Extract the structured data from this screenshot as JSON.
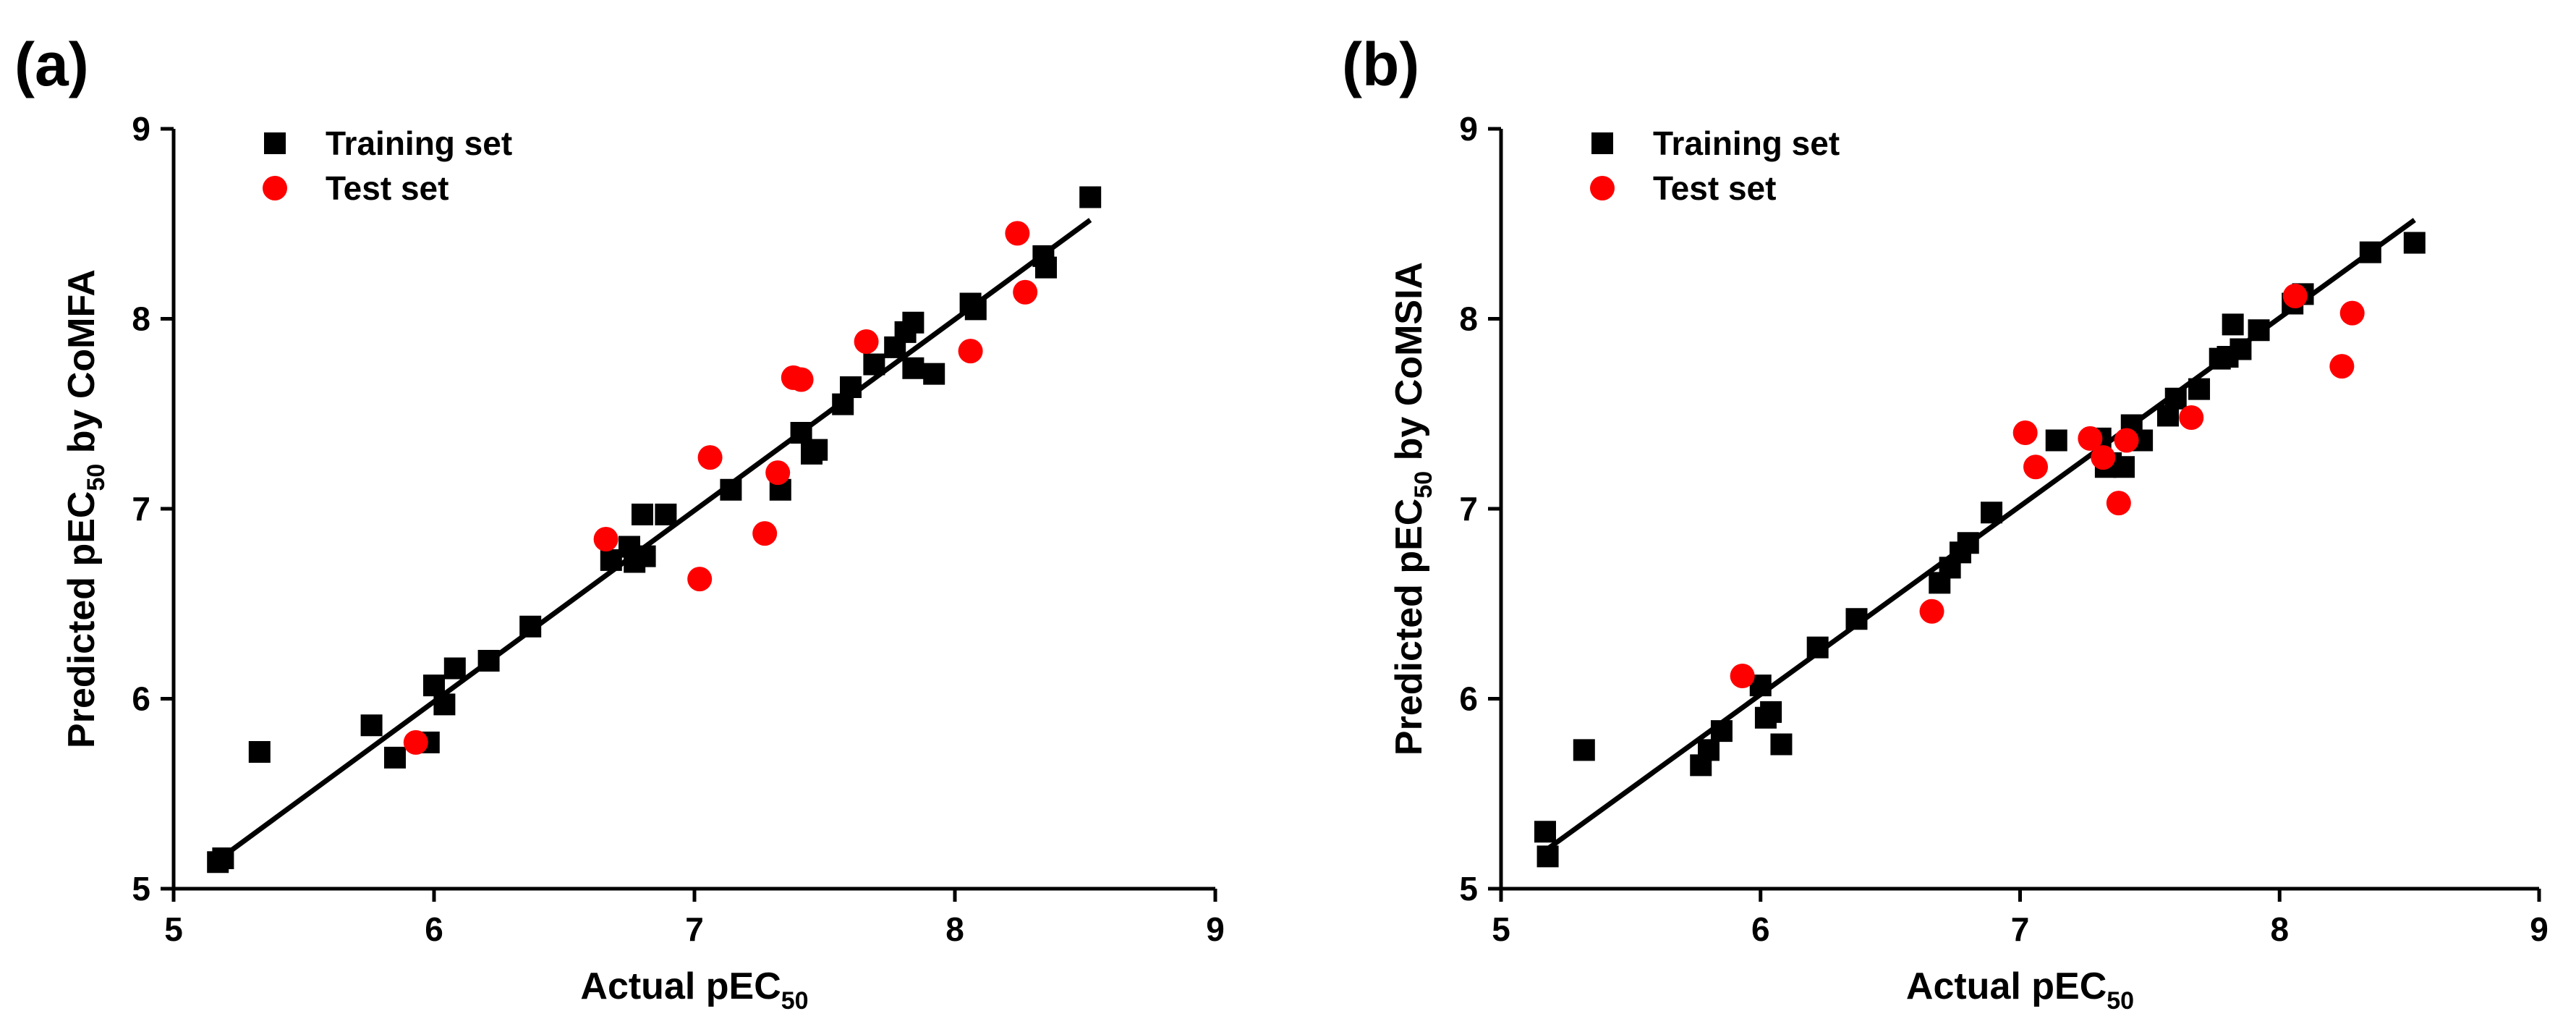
{
  "chart_data": [
    {
      "type": "scatter",
      "panel_label": "(a)",
      "xlabel": "Actual pEC",
      "xlabel_sub": "50",
      "ylabel_pre": "Predicted pEC",
      "ylabel_sub": "50",
      "ylabel_post": " by CoMFA",
      "xlim": [
        5,
        9
      ],
      "ylim": [
        5,
        9
      ],
      "xticks": [
        "5",
        "6",
        "7",
        "8",
        "9"
      ],
      "yticks": [
        "5",
        "6",
        "7",
        "8",
        "9"
      ],
      "legend": [
        "Training set",
        "Test set"
      ],
      "legend_position": "top-left",
      "fit_line": [
        [
          5.17,
          5.15
        ],
        [
          8.52,
          8.52
        ]
      ],
      "series": [
        {
          "name": "Training set",
          "marker": "square",
          "color": "#000000",
          "points": [
            [
              5.17,
              5.14
            ],
            [
              5.19,
              5.16
            ],
            [
              5.33,
              5.72
            ],
            [
              5.76,
              5.86
            ],
            [
              5.85,
              5.69
            ],
            [
              5.98,
              5.77
            ],
            [
              6.0,
              6.07
            ],
            [
              6.04,
              5.97
            ],
            [
              6.08,
              6.16
            ],
            [
              6.21,
              6.2
            ],
            [
              6.37,
              6.38
            ],
            [
              6.68,
              6.73
            ],
            [
              6.75,
              6.8
            ],
            [
              6.77,
              6.72
            ],
            [
              6.8,
              6.97
            ],
            [
              6.81,
              6.75
            ],
            [
              6.89,
              6.97
            ],
            [
              7.14,
              7.1
            ],
            [
              7.33,
              7.1
            ],
            [
              7.41,
              7.4
            ],
            [
              7.45,
              7.29
            ],
            [
              7.47,
              7.31
            ],
            [
              7.57,
              7.55
            ],
            [
              7.6,
              7.64
            ],
            [
              7.69,
              7.76
            ],
            [
              7.77,
              7.85
            ],
            [
              7.81,
              7.93
            ],
            [
              7.84,
              7.98
            ],
            [
              7.84,
              7.74
            ],
            [
              7.92,
              7.71
            ],
            [
              8.06,
              8.08
            ],
            [
              8.08,
              8.05
            ],
            [
              8.34,
              8.33
            ],
            [
              8.35,
              8.27
            ],
            [
              8.52,
              8.64
            ]
          ]
        },
        {
          "name": "Test set",
          "marker": "circle",
          "color": "#ff0000",
          "points": [
            [
              5.93,
              5.77
            ],
            [
              6.66,
              6.84
            ],
            [
              7.02,
              6.63
            ],
            [
              7.06,
              7.27
            ],
            [
              7.27,
              6.87
            ],
            [
              7.32,
              7.19
            ],
            [
              7.38,
              7.69
            ],
            [
              7.41,
              7.68
            ],
            [
              7.66,
              7.88
            ],
            [
              8.06,
              7.83
            ],
            [
              8.24,
              8.45
            ],
            [
              8.27,
              8.14
            ]
          ]
        }
      ]
    },
    {
      "type": "scatter",
      "panel_label": "(b)",
      "xlabel": "Actual pEC",
      "xlabel_sub": "50",
      "ylabel_pre": "Predicted pEC",
      "ylabel_sub": "50",
      "ylabel_post": " by CoMSIA",
      "xlim": [
        5,
        9
      ],
      "ylim": [
        5,
        9
      ],
      "xticks": [
        "5",
        "6",
        "7",
        "8",
        "9"
      ],
      "yticks": [
        "5",
        "6",
        "7",
        "8",
        "9"
      ],
      "legend": [
        "Training set",
        "Test set"
      ],
      "legend_position": "top-left",
      "fit_line": [
        [
          5.17,
          5.2
        ],
        [
          8.52,
          8.52
        ]
      ],
      "series": [
        {
          "name": "Training set",
          "marker": "square",
          "color": "#000000",
          "points": [
            [
              5.17,
              5.3
            ],
            [
              5.18,
              5.17
            ],
            [
              5.32,
              5.73
            ],
            [
              5.77,
              5.65
            ],
            [
              5.8,
              5.73
            ],
            [
              5.85,
              5.83
            ],
            [
              6.0,
              6.07
            ],
            [
              6.02,
              5.9
            ],
            [
              6.04,
              5.93
            ],
            [
              6.08,
              5.76
            ],
            [
              6.22,
              6.27
            ],
            [
              6.37,
              6.42
            ],
            [
              6.69,
              6.61
            ],
            [
              6.73,
              6.69
            ],
            [
              6.77,
              6.77
            ],
            [
              6.8,
              6.82
            ],
            [
              6.89,
              6.98
            ],
            [
              7.14,
              7.36
            ],
            [
              7.31,
              7.37
            ],
            [
              7.33,
              7.22
            ],
            [
              7.35,
              7.24
            ],
            [
              7.4,
              7.22
            ],
            [
              7.43,
              7.44
            ],
            [
              7.47,
              7.36
            ],
            [
              7.57,
              7.49
            ],
            [
              7.6,
              7.58
            ],
            [
              7.69,
              7.63
            ],
            [
              7.77,
              7.79
            ],
            [
              7.8,
              7.8
            ],
            [
              7.82,
              7.97
            ],
            [
              7.85,
              7.84
            ],
            [
              7.92,
              7.94
            ],
            [
              8.05,
              8.08
            ],
            [
              8.09,
              8.13
            ],
            [
              8.35,
              8.35
            ],
            [
              8.52,
              8.4
            ]
          ]
        },
        {
          "name": "Test set",
          "marker": "circle",
          "color": "#ff0000",
          "points": [
            [
              5.93,
              6.12
            ],
            [
              6.66,
              6.46
            ],
            [
              7.02,
              7.4
            ],
            [
              7.06,
              7.22
            ],
            [
              7.27,
              7.37
            ],
            [
              7.32,
              7.27
            ],
            [
              7.38,
              7.03
            ],
            [
              7.41,
              7.36
            ],
            [
              7.66,
              7.48
            ],
            [
              8.06,
              8.12
            ],
            [
              8.24,
              7.75
            ],
            [
              8.28,
              8.03
            ]
          ]
        }
      ]
    }
  ]
}
